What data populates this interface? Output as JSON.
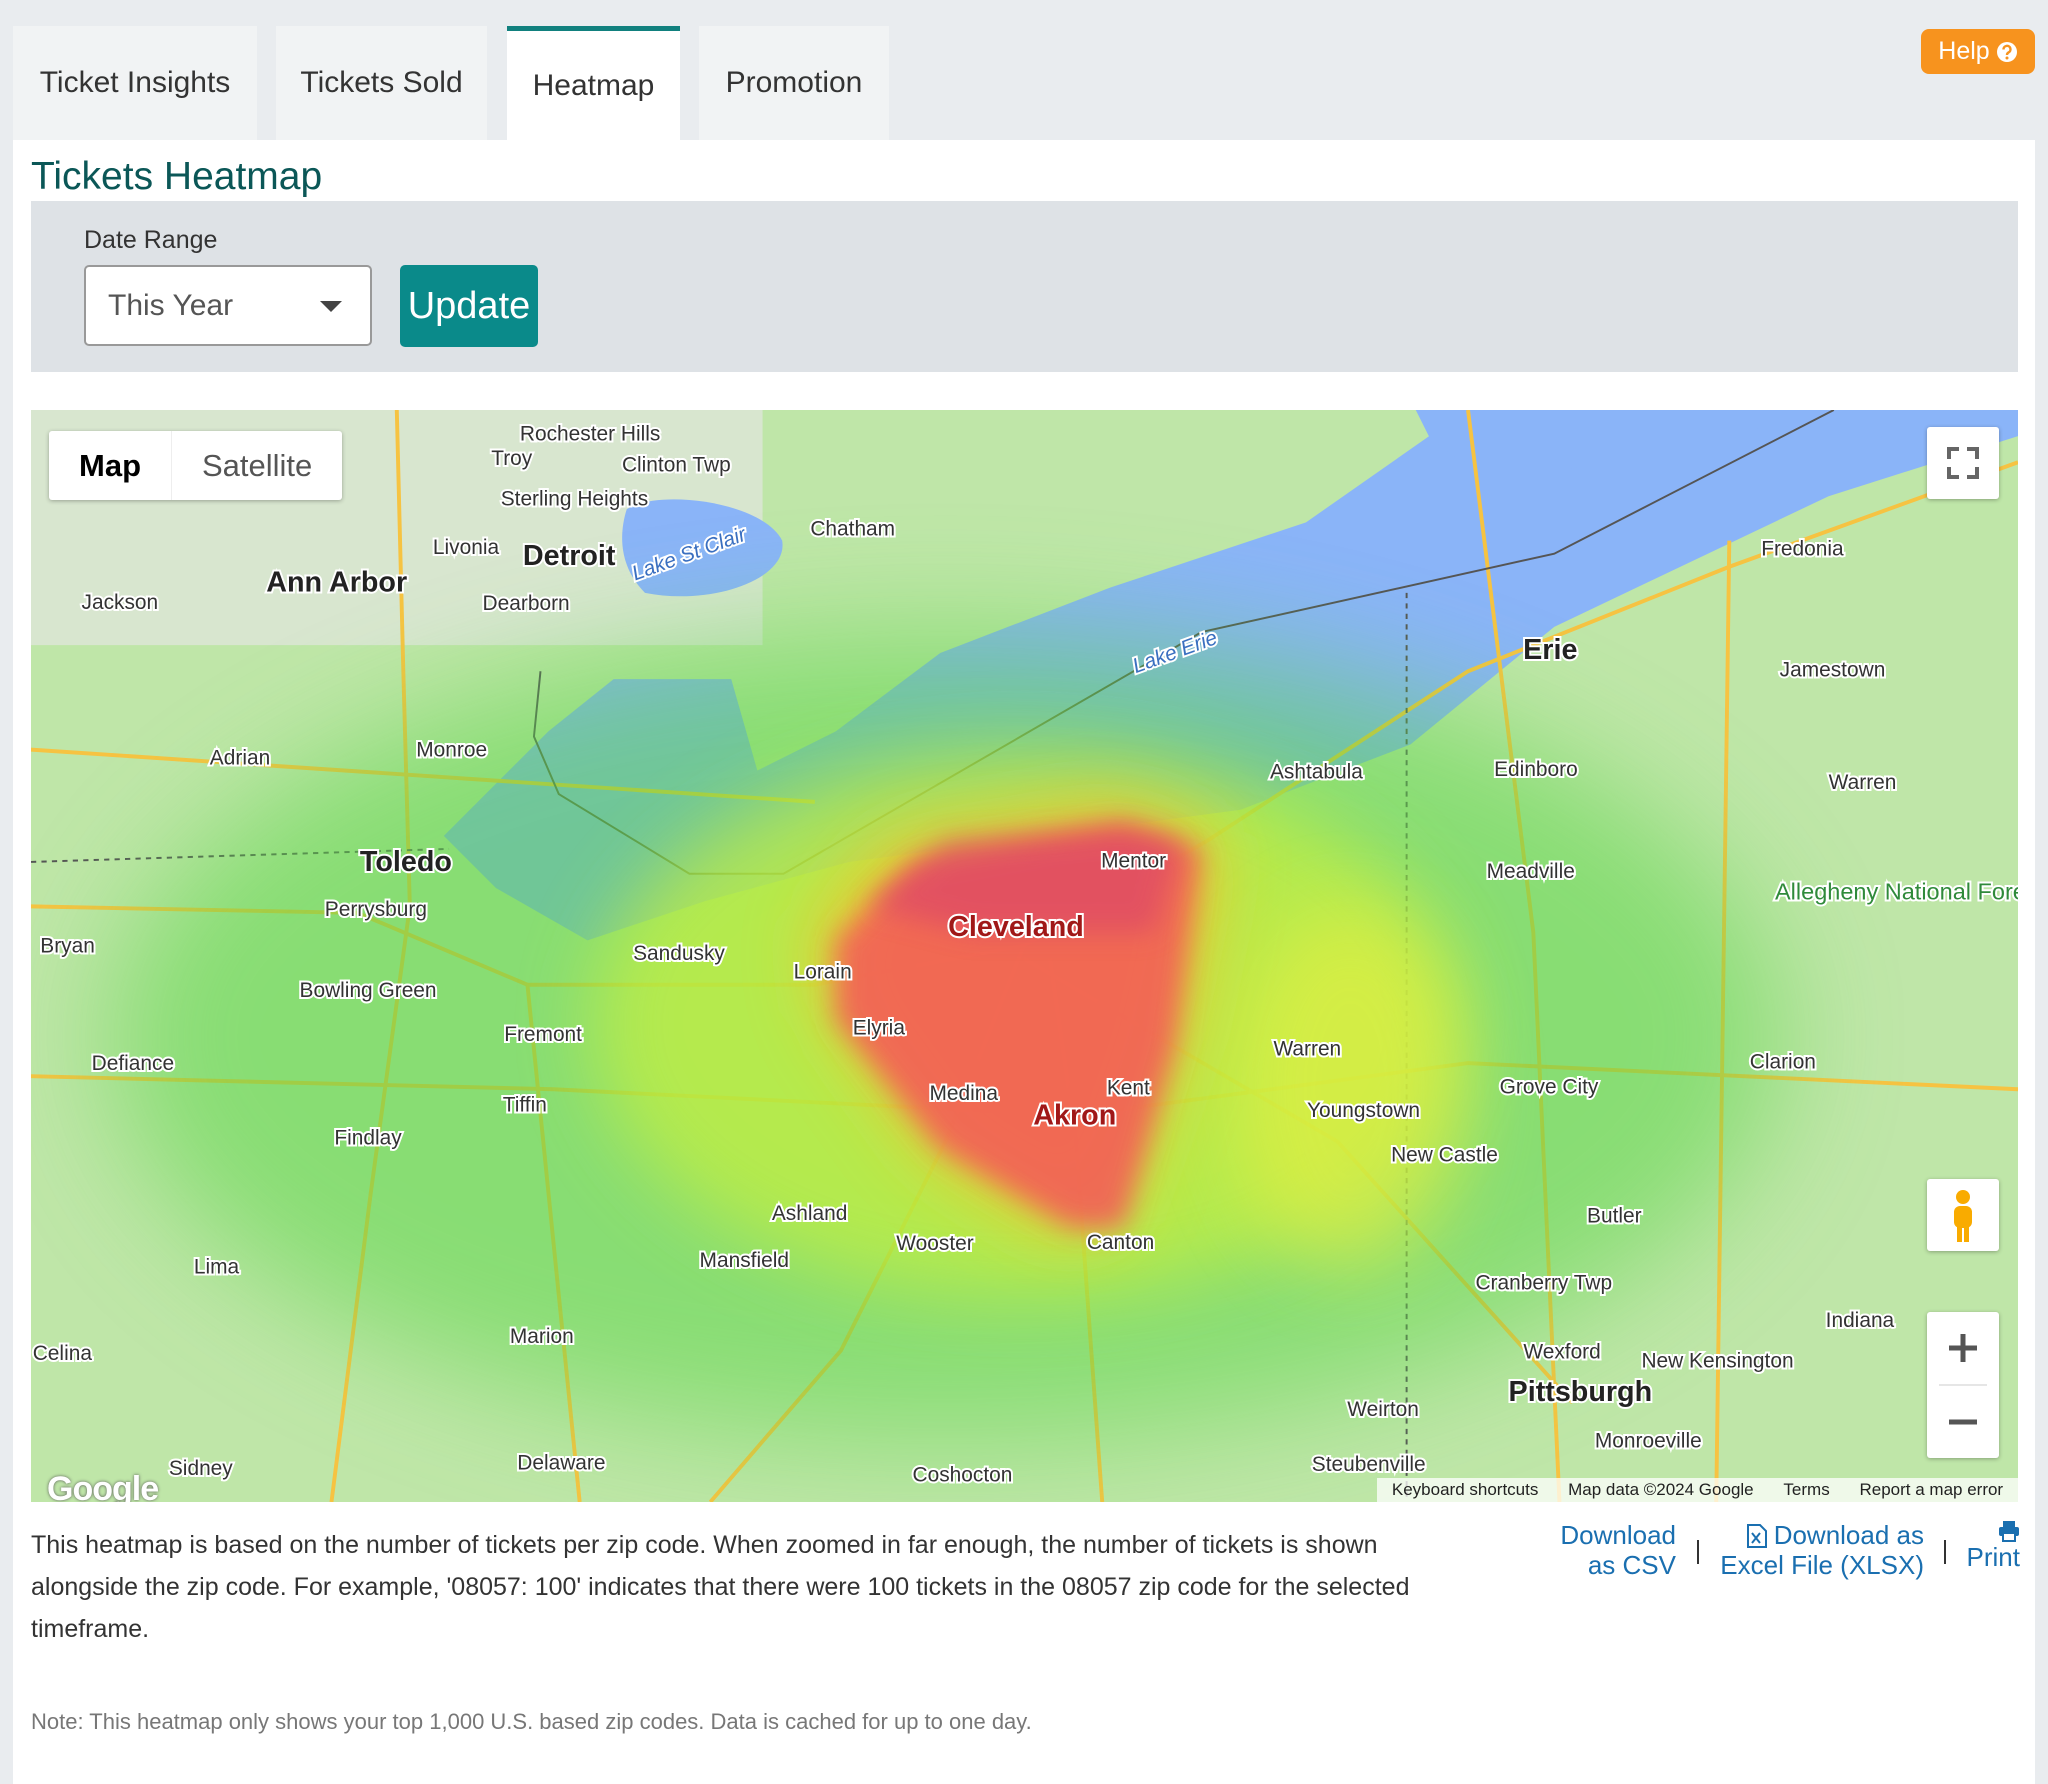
{
  "tabs": [
    "Ticket Insights",
    "Tickets Sold",
    "Heatmap",
    "Promotion"
  ],
  "help": "Help",
  "title": "Tickets Heatmap",
  "filter": {
    "label": "Date Range",
    "selected": "This Year",
    "button": "Update"
  },
  "map": {
    "type_controls": [
      "Map",
      "Satellite"
    ],
    "labels": [
      "Rochester Hills",
      "Troy",
      "Clinton Twp",
      "Sterling Heights",
      "Livonia",
      "Detroit",
      "Dearborn",
      "Ann Arbor",
      "Jackson",
      "Chatham",
      "Lake St Clair",
      "Lake Erie",
      "Adrian",
      "Monroe",
      "Erie",
      "Jamestown",
      "Fredonia",
      "Edinboro",
      "Warren",
      "Ashtabula",
      "Toledo",
      "Perrysburg",
      "Mentor",
      "Meadville",
      "Allegheny National Forest",
      "Bryan",
      "Sandusky",
      "Cleveland",
      "Lorain",
      "Elyria",
      "Bowling Green",
      "Fremont",
      "Defiance",
      "Warren",
      "Grove City",
      "Clarion",
      "Medina",
      "Kent",
      "Akron",
      "Youngstown",
      "Tiffin",
      "Findlay",
      "New Castle",
      "Ashland",
      "Butler",
      "Mansfield",
      "Wooster",
      "Canton",
      "Cranberry Twp",
      "Lima",
      "Marion",
      "Wexford",
      "New Kensington",
      "Indiana",
      "Pittsburgh",
      "Celina",
      "Weirton",
      "Monroeville",
      "Steubenville",
      "Delaware",
      "Coshocton",
      "Sidney"
    ],
    "logo": "Google",
    "footer": [
      "Keyboard shortcuts",
      "Map data ©2024 Google",
      "Terms",
      "Report a map error"
    ]
  },
  "description": "This heatmap is based on the number of tickets per zip code. When zoomed in far enough, the number of tickets is shown alongside the zip code. For example, '08057: 100' indicates that there were 100 tickets in the 08057 zip code for the selected timeframe.",
  "downloads": [
    "Download as CSV",
    "Download as Excel File (XLSX)",
    "Print"
  ],
  "note": "Note: This heatmap only shows your top 1,000 U.S. based zip codes. Data is cached for up to one day."
}
